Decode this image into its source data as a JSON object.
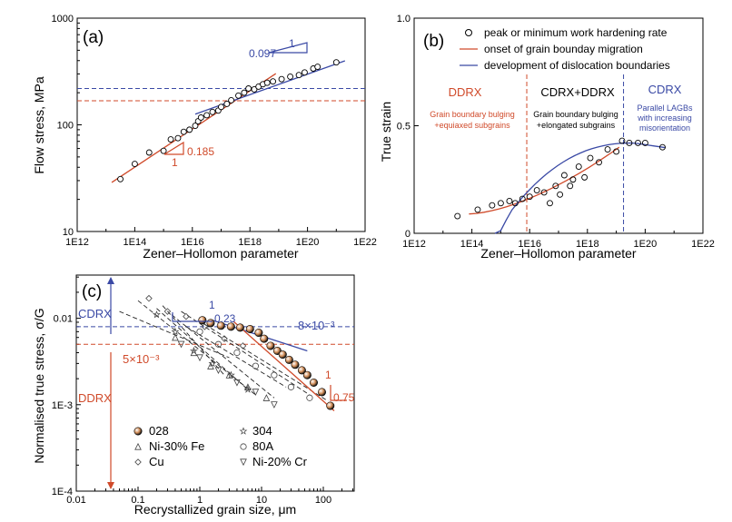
{
  "chart_data": [
    {
      "type": "scatter",
      "panel_label": "(a)",
      "xlabel": "Zener–Hollomon parameter",
      "ylabel": "Flow stress, MPa",
      "xlim_log10": [
        12,
        22
      ],
      "ylim_log10": [
        1,
        3
      ],
      "xscale": "log",
      "yscale": "log",
      "x_tick_labels": [
        "1E12",
        "1E14",
        "1E16",
        "1E18",
        "1E20",
        "1E22"
      ],
      "y_tick_labels": [
        "10",
        "100",
        "1000"
      ],
      "series": [
        {
          "marker": "open-circle",
          "x_log10": [
            13.5,
            14.0,
            14.5,
            15.0,
            15.25,
            15.5,
            15.7,
            15.9,
            16.1,
            16.2,
            16.3,
            16.5,
            16.7,
            16.9,
            17.0,
            17.2,
            17.35,
            17.6,
            17.8,
            17.95,
            18.15,
            18.3,
            18.45,
            18.6,
            18.8,
            19.1,
            19.4,
            19.7,
            19.9,
            20.2,
            20.35,
            21.0
          ],
          "values": [
            31,
            43,
            55,
            57,
            73,
            75,
            86,
            90,
            98,
            108,
            117,
            123,
            132,
            136,
            147,
            157,
            170,
            188,
            200,
            219,
            215,
            228,
            240,
            248,
            255,
            268,
            283,
            293,
            310,
            337,
            350,
            385
          ]
        }
      ],
      "fits": [
        {
          "color": "#d04a2a",
          "x_log10": [
            13.2,
            18.9
          ],
          "y_log10": [
            1.46,
            2.48
          ]
        },
        {
          "color": "#3a49a5",
          "x_log10": [
            16.1,
            21.3
          ],
          "y_log10": [
            2.1,
            2.6
          ]
        }
      ],
      "hlines": [
        {
          "color": "#3a49a5",
          "y": 219
        },
        {
          "color": "#d04a2a",
          "y": 168
        }
      ],
      "annotations": {
        "slope_top": "0.097",
        "slope_top_run": "1",
        "slope_bottom": "0.185",
        "slope_bottom_run": "1"
      }
    },
    {
      "type": "scatter",
      "panel_label": "(b)",
      "xlabel": "Zener–Hollomon parameter",
      "ylabel": "True strain",
      "xlim_log10": [
        12,
        22
      ],
      "ylim": [
        0,
        1.0
      ],
      "xscale": "log",
      "x_tick_labels": [
        "1E12",
        "1E14",
        "1E16",
        "1E18",
        "1E20",
        "1E22"
      ],
      "y_tick_labels": [
        "0",
        "0.5",
        "1.0"
      ],
      "legend": [
        {
          "label": "peak or minimum work hardening rate",
          "marker": "open-circle"
        },
        {
          "label": "onset of grain bounday migration",
          "color": "#d04a2a"
        },
        {
          "label": "development of dislocation boundaries",
          "color": "#3a49a5"
        }
      ],
      "legend_position": "top-right",
      "series": [
        {
          "marker": "open-circle",
          "x_log10": [
            13.5,
            14.2,
            14.7,
            15.0,
            15.3,
            15.5,
            15.75,
            16.0,
            16.25,
            16.5,
            16.7,
            16.9,
            17.05,
            17.2,
            17.4,
            17.5,
            17.7,
            17.9,
            18.1,
            18.4,
            18.7,
            19.0,
            19.2,
            19.45,
            19.75,
            20.0,
            20.6
          ],
          "values": [
            0.08,
            0.11,
            0.13,
            0.14,
            0.15,
            0.14,
            0.16,
            0.17,
            0.2,
            0.19,
            0.14,
            0.22,
            0.18,
            0.27,
            0.22,
            0.25,
            0.31,
            0.26,
            0.35,
            0.33,
            0.39,
            0.38,
            0.43,
            0.42,
            0.42,
            0.42,
            0.4
          ]
        }
      ],
      "fits": [
        {
          "color": "#d04a2a",
          "x_log10": [
            13.9,
            19.1
          ],
          "y": [
            0.09,
            0.4
          ]
        },
        {
          "color": "#3a49a5",
          "x_log10": [
            14.8,
            20.7
          ],
          "y": [
            0.0,
            0.4
          ]
        }
      ],
      "vlines": [
        {
          "color": "#d04a2a",
          "x_log10": 15.9
        },
        {
          "color": "#3a49a5",
          "x_log10": 19.25
        }
      ],
      "regions": [
        {
          "title": "DDRX",
          "title_color": "#d04a2a",
          "lines": [
            "Grain boundary bulging",
            "+equiaxed subgrains"
          ],
          "text_color": "#d04a2a"
        },
        {
          "title": "CDRX+DDRX",
          "title_color": "#000000",
          "lines": [
            "Grain boundary bulging",
            "+elongated subgrains"
          ],
          "text_color": "#000000"
        },
        {
          "title": "CDRX",
          "title_color": "#3a49a5",
          "lines": [
            "Parallel LAGBs",
            "with increasing",
            "misorientation"
          ],
          "text_color": "#3a49a5"
        }
      ]
    },
    {
      "type": "scatter",
      "panel_label": "(c)",
      "xlabel": "Recrystallized grain size, μm",
      "ylabel": "Normalised true stress, σ/G",
      "xlim_log10": [
        -2,
        2.5
      ],
      "ylim_log10": [
        -4,
        -1.5
      ],
      "xscale": "log",
      "yscale": "log",
      "x_tick_labels": [
        "0.01",
        "0.1",
        "1",
        "10",
        "100"
      ],
      "y_tick_labels": [
        "1E-4",
        "1E-3",
        "0.01"
      ],
      "legend": [
        {
          "label": "028",
          "marker": "sphere"
        },
        {
          "label": "Ni-30% Fe",
          "marker": "triangle"
        },
        {
          "label": "Cu",
          "marker": "diamond"
        },
        {
          "label": "304",
          "marker": "star"
        },
        {
          "label": "80A",
          "marker": "circle"
        },
        {
          "label": "Ni-20% Cr",
          "marker": "triangle-down"
        }
      ],
      "legend_position": "bottom-left",
      "series": [
        {
          "name": "028",
          "x": [
            1.1,
            1.5,
            2.2,
            3.2,
            4.5,
            6.5,
            9,
            11,
            14,
            18,
            22,
            28,
            35,
            45,
            55,
            70,
            95,
            130
          ],
          "values": [
            0.0095,
            0.0088,
            0.0082,
            0.008,
            0.0078,
            0.0075,
            0.0068,
            0.0058,
            0.0048,
            0.0042,
            0.0038,
            0.0033,
            0.0029,
            0.0025,
            0.0022,
            0.0018,
            0.0014,
            0.00097
          ]
        },
        {
          "name": "Ni-30% Fe",
          "x": [
            0.4,
            0.8,
            1.5,
            3,
            6,
            12
          ],
          "values": [
            0.006,
            0.004,
            0.0028,
            0.0022,
            0.0016,
            0.0012
          ]
        },
        {
          "name": "Cu",
          "x": [
            0.15,
            0.3,
            0.6,
            1.2,
            2.5,
            5
          ],
          "values": [
            0.017,
            0.012,
            0.0105,
            0.008,
            0.0058,
            0.0048
          ]
        },
        {
          "name": "304",
          "x": [
            0.2,
            0.4,
            0.8,
            1.6,
            3.2,
            6
          ],
          "values": [
            0.011,
            0.007,
            0.0042,
            0.003,
            0.0022,
            0.0015
          ]
        },
        {
          "name": "80A",
          "x": [
            1,
            2,
            4,
            8,
            16,
            30,
            60
          ],
          "values": [
            0.007,
            0.005,
            0.004,
            0.0028,
            0.0022,
            0.0016,
            0.0012
          ]
        },
        {
          "name": "Ni-20% Cr",
          "x": [
            0.5,
            1,
            2,
            4,
            8,
            16
          ],
          "values": [
            0.005,
            0.0035,
            0.0025,
            0.0018,
            0.0014,
            0.001
          ]
        }
      ],
      "dashed_guides": [
        {
          "x": [
            0.05,
            3
          ],
          "y": [
            0.012,
            0.0035
          ]
        },
        {
          "x": [
            0.1,
            8
          ],
          "y": [
            0.016,
            0.0013
          ]
        },
        {
          "x": [
            0.2,
            6
          ],
          "y": [
            0.013,
            0.0015
          ]
        },
        {
          "x": [
            0.35,
            16
          ],
          "y": [
            0.011,
            0.0012
          ]
        },
        {
          "x": [
            0.5,
            60
          ],
          "y": [
            0.012,
            0.0013
          ]
        },
        {
          "x": [
            0.25,
            2.5
          ],
          "y": [
            0.014,
            0.0022
          ]
        },
        {
          "x": [
            0.6,
            25
          ],
          "y": [
            0.008,
            0.0016
          ]
        },
        {
          "x": [
            1.2,
            120
          ],
          "y": [
            0.0085,
            0.0011
          ]
        }
      ],
      "fits": [
        {
          "color": "#3a49a5",
          "x": [
            1.6,
            55
          ],
          "y": [
            0.0095,
            0.0042
          ]
        },
        {
          "color": "#d04a2a",
          "x": [
            3.5,
            150
          ],
          "y": [
            0.0092,
            0.00085
          ]
        }
      ],
      "hlines": [
        {
          "color": "#3a49a5",
          "y": 0.008,
          "label": "8×10⁻³"
        },
        {
          "color": "#d04a2a",
          "y": 0.005,
          "label": "5×10⁻³"
        }
      ],
      "region_labels": [
        {
          "text": "CDRX",
          "color": "#3a49a5"
        },
        {
          "text": "DDRX",
          "color": "#d04a2a"
        }
      ],
      "annotations": {
        "slope_top": "0.23",
        "slope_top_run": "1",
        "slope_bottom": "0.75",
        "slope_bottom_run": "1"
      }
    }
  ]
}
